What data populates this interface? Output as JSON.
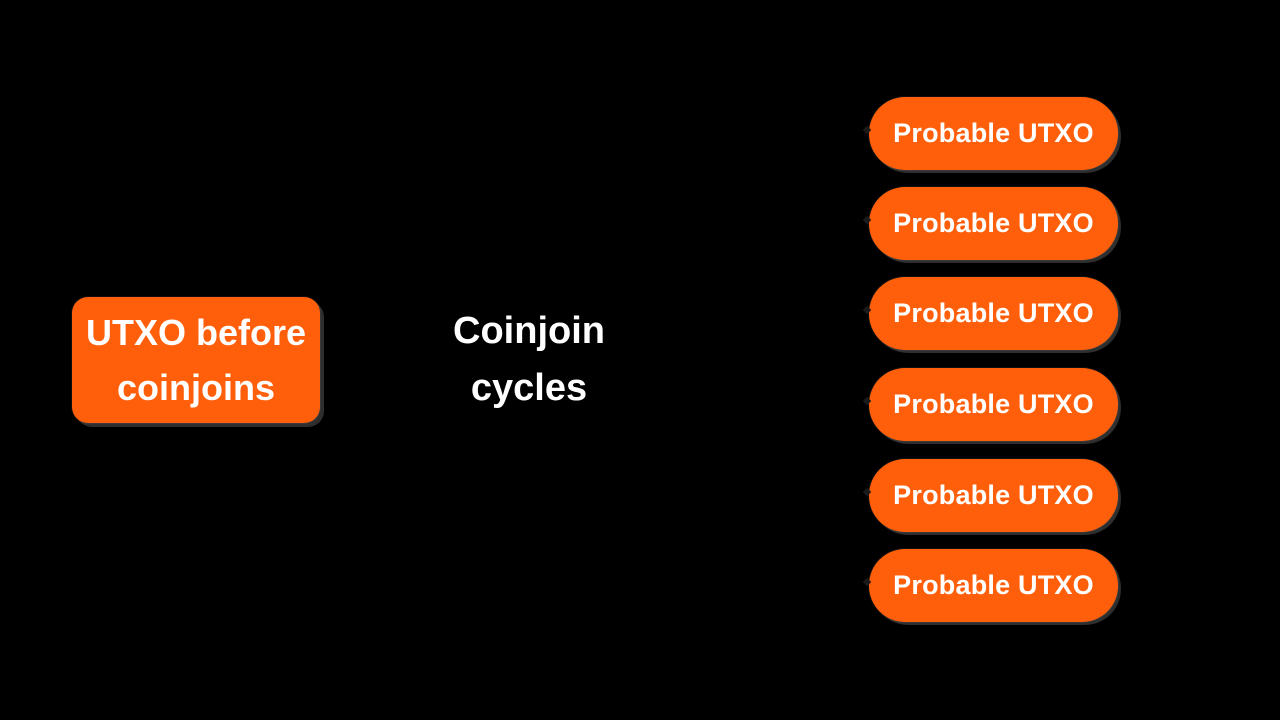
{
  "colors": {
    "background": "#000000",
    "accent": "#ff5f0a",
    "text": "#ffffff"
  },
  "diagram": {
    "source": {
      "label_line1": "UTXO before",
      "label_line2": "coinjoins"
    },
    "process": {
      "label_line1": "Coinjoin",
      "label_line2": "cycles"
    },
    "outputs": [
      {
        "label": "Probable UTXO"
      },
      {
        "label": "Probable UTXO"
      },
      {
        "label": "Probable UTXO"
      },
      {
        "label": "Probable UTXO"
      },
      {
        "label": "Probable UTXO"
      },
      {
        "label": "Probable UTXO"
      }
    ]
  }
}
